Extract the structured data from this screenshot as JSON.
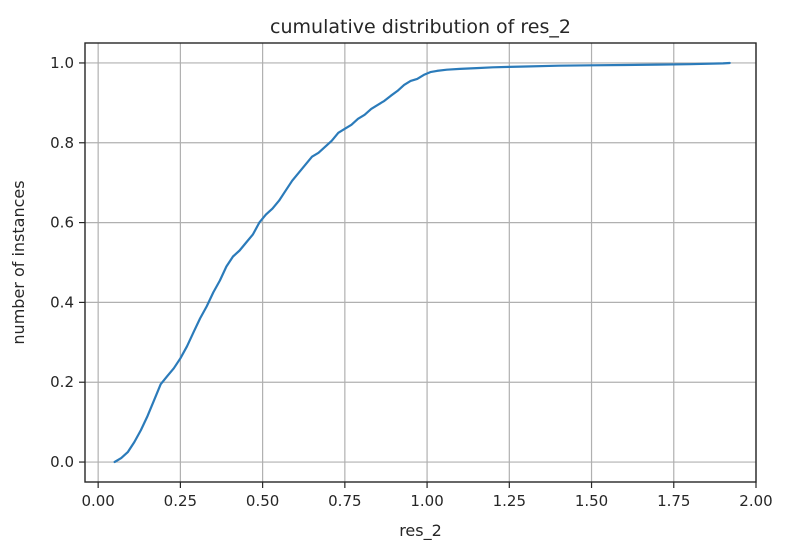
{
  "chart_data": {
    "type": "line",
    "title": "cumulative distribution of res_2",
    "xlabel": "res_2",
    "ylabel": "number of instances",
    "xlim": [
      -0.04,
      2.0
    ],
    "ylim": [
      -0.05,
      1.05
    ],
    "xticks": [
      0.0,
      0.25,
      0.5,
      0.75,
      1.0,
      1.25,
      1.5,
      1.75,
      2.0
    ],
    "xtick_labels": [
      "0.00",
      "0.25",
      "0.50",
      "0.75",
      "1.00",
      "1.25",
      "1.50",
      "1.75",
      "2.00"
    ],
    "yticks": [
      0.0,
      0.2,
      0.4,
      0.6,
      0.8,
      1.0
    ],
    "ytick_labels": [
      "0.0",
      "0.2",
      "0.4",
      "0.6",
      "0.8",
      "1.0"
    ],
    "grid": true,
    "line_color": "#2b7bba",
    "series": [
      {
        "x": [
          0.05,
          0.07,
          0.09,
          0.11,
          0.13,
          0.15,
          0.17,
          0.19,
          0.21,
          0.23,
          0.25,
          0.27,
          0.29,
          0.31,
          0.33,
          0.35,
          0.37,
          0.39,
          0.41,
          0.43,
          0.45,
          0.47,
          0.49,
          0.51,
          0.53,
          0.55,
          0.57,
          0.59,
          0.61,
          0.63,
          0.65,
          0.67,
          0.69,
          0.71,
          0.73,
          0.75,
          0.77,
          0.79,
          0.81,
          0.83,
          0.85,
          0.87,
          0.89,
          0.91,
          0.93,
          0.95,
          0.97,
          0.99,
          1.01,
          1.03,
          1.06,
          1.1,
          1.15,
          1.2,
          1.25,
          1.3,
          1.4,
          1.5,
          1.6,
          1.7,
          1.8,
          1.9,
          1.92
        ],
        "y": [
          0.0,
          0.01,
          0.025,
          0.05,
          0.08,
          0.115,
          0.155,
          0.195,
          0.215,
          0.235,
          0.26,
          0.29,
          0.325,
          0.36,
          0.39,
          0.425,
          0.455,
          0.49,
          0.515,
          0.53,
          0.55,
          0.57,
          0.6,
          0.62,
          0.635,
          0.655,
          0.68,
          0.705,
          0.725,
          0.745,
          0.765,
          0.775,
          0.79,
          0.805,
          0.825,
          0.835,
          0.845,
          0.86,
          0.87,
          0.885,
          0.895,
          0.905,
          0.918,
          0.93,
          0.945,
          0.955,
          0.96,
          0.97,
          0.977,
          0.98,
          0.983,
          0.985,
          0.987,
          0.989,
          0.99,
          0.991,
          0.993,
          0.994,
          0.995,
          0.996,
          0.997,
          0.999,
          1.0
        ]
      }
    ]
  }
}
